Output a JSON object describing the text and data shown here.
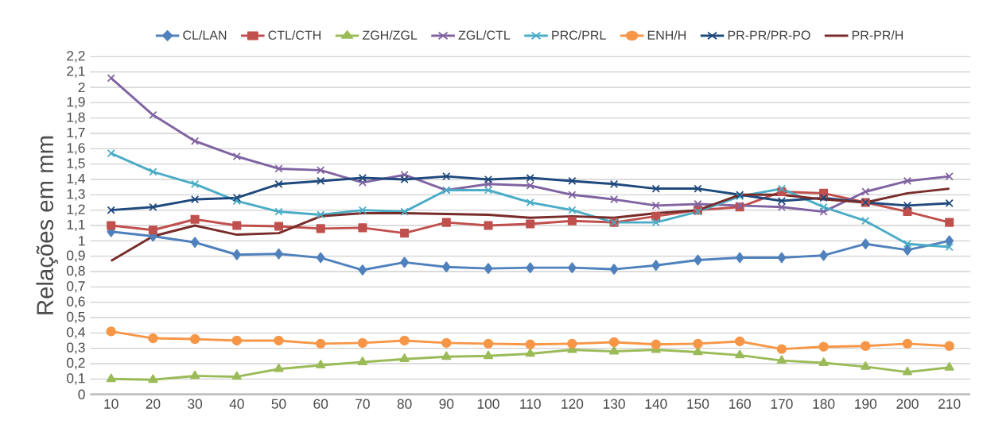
{
  "chart_data": {
    "type": "line",
    "ylabel": "Relações em mm",
    "categories": [
      "10",
      "20",
      "30",
      "40",
      "50",
      "60",
      "70",
      "80",
      "90",
      "100",
      "110",
      "120",
      "130",
      "140",
      "150",
      "160",
      "170",
      "180",
      "190",
      "200",
      "210"
    ],
    "ylim": [
      0,
      2.2
    ],
    "yticks": [
      {
        "value": 0,
        "label": "0"
      },
      {
        "value": 0.1,
        "label": "0,1"
      },
      {
        "value": 0.2,
        "label": "0,2"
      },
      {
        "value": 0.3,
        "label": "0,3"
      },
      {
        "value": 0.4,
        "label": "0,4"
      },
      {
        "value": 0.5,
        "label": "0,5"
      },
      {
        "value": 0.6,
        "label": "0,6"
      },
      {
        "value": 0.7,
        "label": "0,7"
      },
      {
        "value": 0.8,
        "label": "0,8"
      },
      {
        "value": 0.9,
        "label": "0,9"
      },
      {
        "value": 1,
        "label": "1"
      },
      {
        "value": 1.1,
        "label": "1,1"
      },
      {
        "value": 1.2,
        "label": "1,2"
      },
      {
        "value": 1.3,
        "label": "1,3"
      },
      {
        "value": 1.4,
        "label": "1,4"
      },
      {
        "value": 1.5,
        "label": "1,5"
      },
      {
        "value": 1.6,
        "label": "1,6"
      },
      {
        "value": 1.7,
        "label": "1,7"
      },
      {
        "value": 1.8,
        "label": "1,8"
      },
      {
        "value": 1.9,
        "label": "1,9"
      },
      {
        "value": 2,
        "label": "2"
      },
      {
        "value": 2.1,
        "label": "2,1"
      },
      {
        "value": 2.2,
        "label": "2,2"
      }
    ],
    "grid": "y",
    "legend": "top",
    "series": [
      {
        "name": "CL/LAN",
        "color": "#4f81bd",
        "marker": "diamond",
        "values": [
          1.06,
          1.03,
          0.99,
          0.91,
          0.915,
          0.89,
          0.81,
          0.86,
          0.83,
          0.82,
          0.825,
          0.825,
          0.815,
          0.84,
          0.875,
          0.89,
          0.89,
          0.905,
          0.98,
          0.94,
          1.0
        ]
      },
      {
        "name": "CTL/CTH",
        "color": "#c0504d",
        "marker": "square",
        "values": [
          1.1,
          1.07,
          1.14,
          1.1,
          1.095,
          1.08,
          1.085,
          1.05,
          1.12,
          1.1,
          1.11,
          1.13,
          1.12,
          1.16,
          1.2,
          1.22,
          1.32,
          1.31,
          1.25,
          1.19,
          1.12
        ]
      },
      {
        "name": "ZGH/ZGL",
        "color": "#9bbb59",
        "marker": "triangle",
        "values": [
          0.1,
          0.095,
          0.12,
          0.115,
          0.165,
          0.19,
          0.21,
          0.23,
          0.245,
          0.25,
          0.265,
          0.29,
          0.28,
          0.29,
          0.275,
          0.255,
          0.22,
          0.205,
          0.18,
          0.145,
          0.175
        ]
      },
      {
        "name": "ZGL/CTL",
        "color": "#8064a2",
        "marker": "cross",
        "values": [
          2.06,
          1.82,
          1.65,
          1.55,
          1.47,
          1.46,
          1.38,
          1.43,
          1.33,
          1.37,
          1.36,
          1.3,
          1.27,
          1.23,
          1.24,
          1.23,
          1.22,
          1.19,
          1.32,
          1.39,
          1.42
        ]
      },
      {
        "name": "PRC/PRL",
        "color": "#4bacc6",
        "marker": "cross",
        "values": [
          1.57,
          1.45,
          1.37,
          1.26,
          1.19,
          1.17,
          1.2,
          1.19,
          1.33,
          1.33,
          1.25,
          1.2,
          1.12,
          1.12,
          1.19,
          1.29,
          1.34,
          1.22,
          1.13,
          0.98,
          0.96
        ]
      },
      {
        "name": "ENH/H",
        "color": "#f79646",
        "marker": "circle",
        "values": [
          0.41,
          0.365,
          0.36,
          0.35,
          0.35,
          0.33,
          0.335,
          0.35,
          0.335,
          0.33,
          0.325,
          0.33,
          0.34,
          0.325,
          0.33,
          0.345,
          0.295,
          0.31,
          0.315,
          0.33,
          0.315
        ]
      },
      {
        "name": "PR-PR/PR-PO",
        "color": "#1f497d",
        "marker": "cross",
        "values": [
          1.2,
          1.22,
          1.27,
          1.28,
          1.37,
          1.39,
          1.41,
          1.4,
          1.42,
          1.4,
          1.41,
          1.39,
          1.37,
          1.34,
          1.34,
          1.3,
          1.26,
          1.28,
          1.25,
          1.23,
          1.245
        ]
      },
      {
        "name": "PR-PR/H",
        "color": "#772c2a",
        "marker": "none",
        "values": [
          0.87,
          1.03,
          1.1,
          1.04,
          1.05,
          1.16,
          1.18,
          1.18,
          1.175,
          1.17,
          1.15,
          1.16,
          1.15,
          1.18,
          1.2,
          1.3,
          1.3,
          1.27,
          1.25,
          1.31,
          1.34
        ]
      }
    ]
  }
}
